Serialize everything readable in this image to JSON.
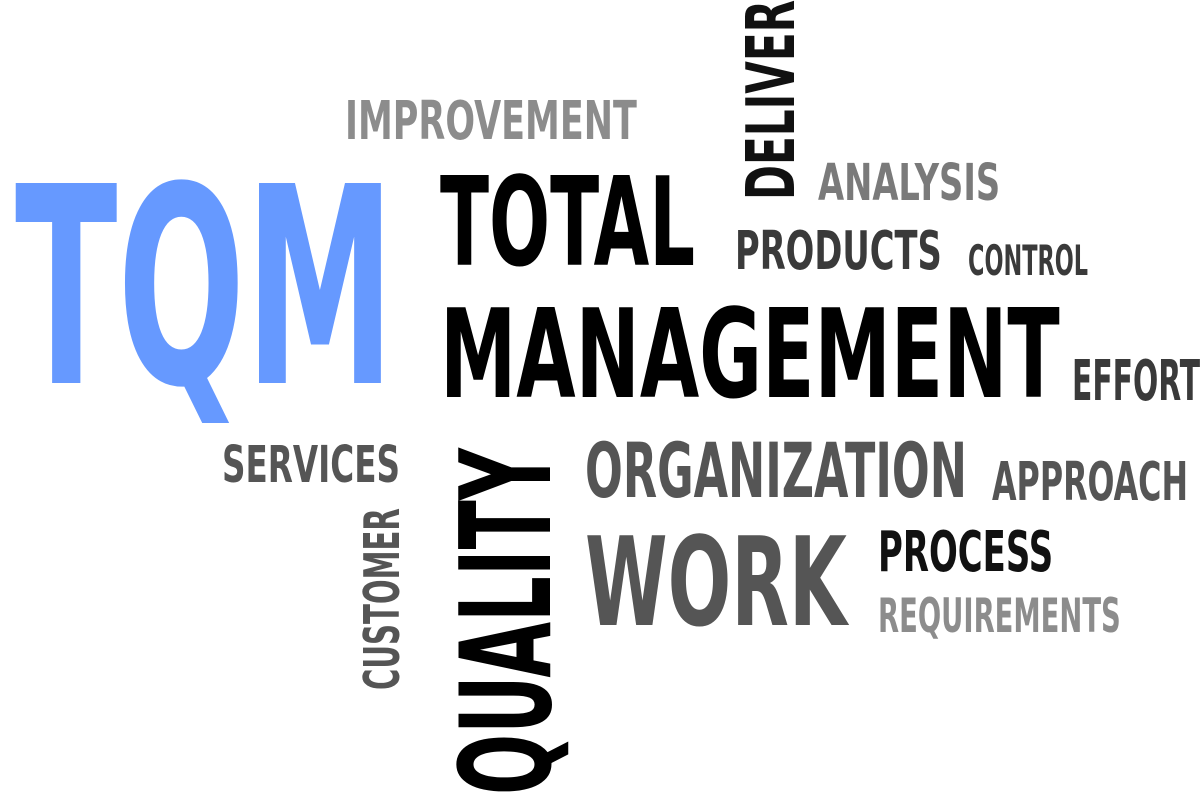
{
  "words": {
    "tqm": {
      "text": "TQM",
      "color": "#6699ff"
    },
    "total": {
      "text": "TOTAL",
      "color": "#000000"
    },
    "management": {
      "text": "MANAGEMENT",
      "color": "#000000"
    },
    "improvement": {
      "text": "IMPROVEMENT",
      "color": "#8c8c8c"
    },
    "deliver": {
      "text": "DELIVER",
      "color": "#111111"
    },
    "analysis": {
      "text": "ANALYSIS",
      "color": "#7a7a7a"
    },
    "products": {
      "text": "PRODUCTS",
      "color": "#3a3a3a"
    },
    "control": {
      "text": "CONTROL",
      "color": "#3a3a3a"
    },
    "effort": {
      "text": "EFFORT",
      "color": "#3a3a3a"
    },
    "services": {
      "text": "SERVICES",
      "color": "#555555"
    },
    "customer": {
      "text": "CUSTOMER",
      "color": "#555555"
    },
    "quality": {
      "text": "QUALITY",
      "color": "#000000"
    },
    "organization": {
      "text": "ORGANIZATION",
      "color": "#555555"
    },
    "approach": {
      "text": "APPROACH",
      "color": "#555555"
    },
    "work": {
      "text": "WORK",
      "color": "#555555"
    },
    "process": {
      "text": "PROCESS",
      "color": "#111111"
    },
    "requirements": {
      "text": "REQUIREMENTS",
      "color": "#8c8c8c"
    }
  }
}
